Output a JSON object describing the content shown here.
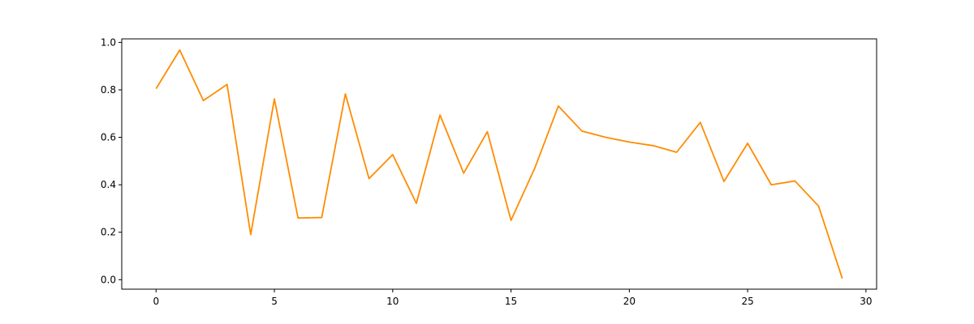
{
  "chart_data": {
    "type": "line",
    "title": "",
    "xlabel": "",
    "ylabel": "",
    "xlim": [
      -1.45,
      30.45
    ],
    "ylim": [
      -0.04,
      1.015
    ],
    "grid": false,
    "xticks": [
      0,
      5,
      10,
      15,
      20,
      25,
      30
    ],
    "xtick_labels": [
      "0",
      "5",
      "10",
      "15",
      "20",
      "25",
      "30"
    ],
    "yticks": [
      0.0,
      0.2,
      0.4,
      0.6,
      0.8,
      1.0
    ],
    "ytick_labels": [
      "0.0",
      "0.2",
      "0.4",
      "0.6",
      "0.8",
      "1.0"
    ],
    "series": [
      {
        "color": "#ff8c00",
        "x": [
          0,
          1,
          2,
          3,
          4,
          5,
          6,
          7,
          8,
          9,
          10,
          11,
          12,
          13,
          14,
          15,
          16,
          17,
          18,
          19,
          20,
          21,
          22,
          23,
          24,
          25,
          26,
          27,
          28,
          29
        ],
        "y": [
          0.805,
          0.968,
          0.755,
          0.823,
          0.19,
          0.762,
          0.26,
          0.262,
          0.783,
          0.426,
          0.527,
          0.322,
          0.694,
          0.449,
          0.624,
          0.25,
          0.469,
          0.732,
          0.626,
          0.6,
          0.58,
          0.565,
          0.537,
          0.663,
          0.414,
          0.575,
          0.4,
          0.416,
          0.31,
          0.005
        ]
      }
    ]
  }
}
